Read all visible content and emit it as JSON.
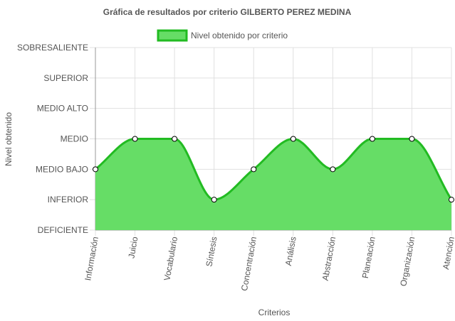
{
  "chart_data": {
    "type": "area",
    "title": "Gráfica de resultados por criterio GILBERTO PEREZ MEDINA",
    "xlabel": "Criterios",
    "ylabel": "Nivel obtenido",
    "levels": [
      "DEFICIENTE",
      "INFERIOR",
      "MEDIO BAJO",
      "MEDIO",
      "MEDIO ALTO",
      "SUPERIOR",
      "SOBRESALIENTE"
    ],
    "categories": [
      "Información",
      "Juicio",
      "Vocabulario",
      "Síntesis",
      "Concentración",
      "Análisis",
      "Abstracción",
      "Planeación",
      "Organización",
      "Atención"
    ],
    "series": [
      {
        "name": "Nivel obtenido por criterio",
        "values": [
          2,
          3,
          3,
          1,
          2,
          3,
          2,
          3,
          3,
          1
        ]
      }
    ],
    "ylim": [
      0,
      6
    ],
    "grid": true,
    "legend_position": "top",
    "colors": {
      "fill": "#66dd66",
      "line": "#22bb22",
      "point_fill": "#ffffff",
      "point_stroke": "#000000",
      "grid": "#e0e0e0",
      "axis": "#999999"
    }
  }
}
